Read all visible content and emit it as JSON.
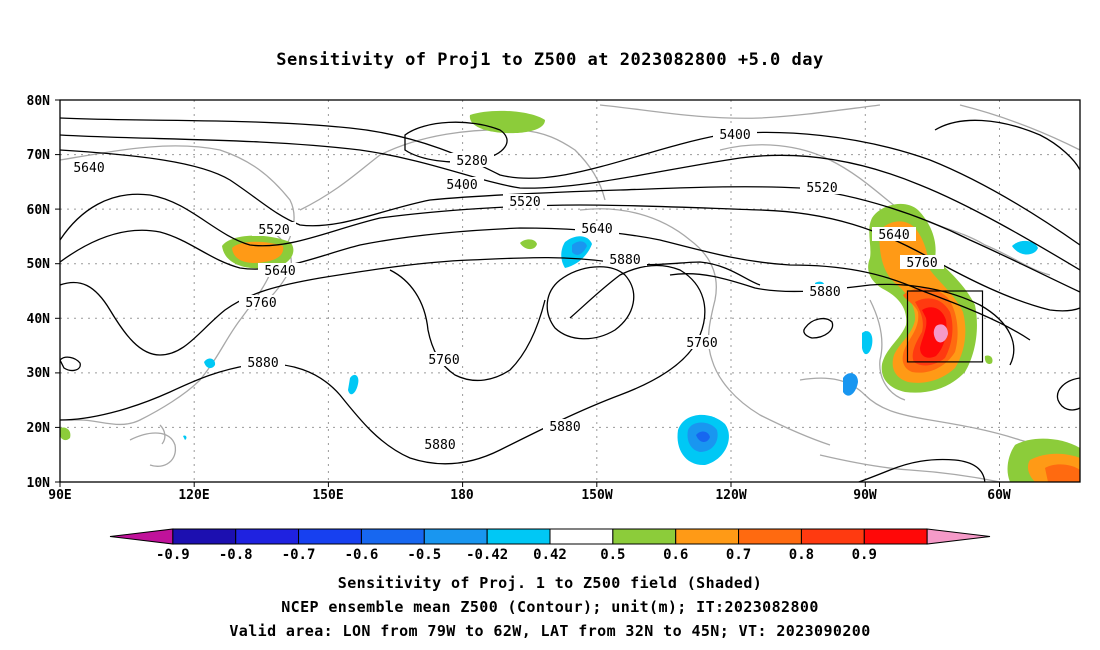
{
  "title": "Sensitivity of Proj1 to Z500 at 2023082800 +5.0 day",
  "lat_labels": [
    "80N",
    "70N",
    "60N",
    "50N",
    "40N",
    "30N",
    "20N",
    "10N"
  ],
  "lon_labels": [
    "90E",
    "120E",
    "150E",
    "180",
    "150W",
    "120W",
    "90W",
    "60W"
  ],
  "contour_labels": [
    "5640",
    "5280",
    "5400",
    "5400",
    "5520",
    "5520",
    "5520",
    "5640",
    "5640",
    "5640",
    "5760",
    "5880",
    "5880",
    "5760",
    "5760",
    "5880",
    "5880",
    "5880",
    "5760"
  ],
  "colorbar": {
    "labels": [
      "-0.9",
      "-0.8",
      "-0.7",
      "-0.6",
      "-0.5",
      "-0.42",
      "0.42",
      "0.5",
      "0.6",
      "0.7",
      "0.8",
      "0.9"
    ],
    "colors": [
      "#c0129a",
      "#1c0fb0",
      "#1f22e0",
      "#1740f0",
      "#1767f0",
      "#1996f0",
      "#00c8f5",
      "#ffffff",
      "#8ccc3a",
      "#ff9a16",
      "#ff6a10",
      "#ff3a10",
      "#ff0808",
      "#f59ac8"
    ]
  },
  "captions": [
    "Sensitivity of Proj. 1 to Z500 field (Shaded)",
    "NCEP ensemble mean Z500 (Contour); unit(m); IT:2023082800",
    "Valid area: LON from 79W to 62W, LAT from 32N to 45N; VT: 2023090200"
  ]
}
